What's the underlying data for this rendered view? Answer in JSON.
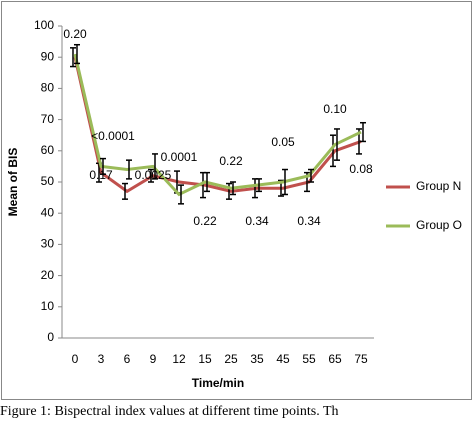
{
  "chart_data": {
    "type": "line",
    "y_label": "Mean of BIS",
    "x_label": "Time/min",
    "categories": [
      "0",
      "3",
      "6",
      "9",
      "12",
      "15",
      "25",
      "35",
      "45",
      "55",
      "65",
      "75"
    ],
    "series": [
      {
        "name": "Group N",
        "color": "#c0504d",
        "values": [
          90,
          53,
          47,
          52,
          50,
          49,
          47,
          48,
          48,
          50,
          60,
          63
        ],
        "errors": [
          3,
          3,
          2.5,
          2,
          3.5,
          4,
          2.5,
          3,
          2.5,
          3,
          5,
          4
        ]
      },
      {
        "name": "Group O",
        "color": "#9bbb59",
        "values": [
          91,
          55,
          54,
          55,
          46,
          50,
          48,
          49,
          50,
          52,
          62,
          66
        ],
        "errors": [
          3,
          2.5,
          3,
          4,
          3,
          3,
          2,
          2,
          4,
          2,
          5,
          3
        ]
      }
    ],
    "ylim": [
      0,
      100
    ],
    "yticks": [
      0,
      10,
      20,
      30,
      40,
      50,
      60,
      70,
      80,
      90,
      100
    ],
    "legend": "right",
    "annotations": [
      "0.20",
      "<0.0001",
      "0.17",
      "0.0025",
      "0.0001",
      "0.22",
      "0.22",
      "0.34",
      "0.05",
      "0.34",
      "0.10",
      "0.08"
    ],
    "caption": "Figure 1: Bispectral index values at different time points. Th"
  }
}
